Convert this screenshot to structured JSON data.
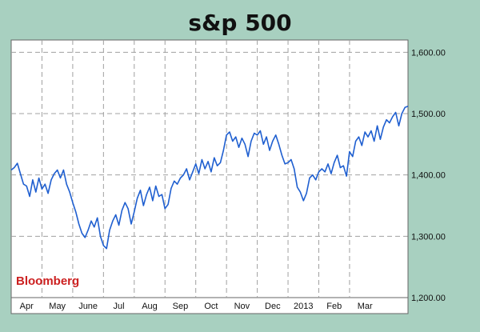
{
  "colors": {
    "background": "#a8d0c0",
    "plot_background": "#ffffff",
    "line": "#1f5fd0",
    "grid": "#a0a0a0",
    "source_text": "#cc2020"
  },
  "chart_data": {
    "type": "line",
    "title": "s&p 500",
    "xlabel": "",
    "ylabel": "",
    "source_label": "Bloomberg",
    "ylim": [
      1200,
      1620
    ],
    "yticks": [
      1200,
      1300,
      1400,
      1500,
      1600
    ],
    "ytick_labels": [
      "1,200.00",
      "1,300.00",
      "1,400.00",
      "1,500.00",
      "1,600.00"
    ],
    "x_tick_labels": [
      "Apr",
      "May",
      "June",
      "Jul",
      "Aug",
      "Sep",
      "Oct",
      "Nov",
      "Dec",
      "2013",
      "Feb",
      "Mar"
    ],
    "grid": true,
    "legend": "none",
    "y_axis_position": "right",
    "x_range": [
      0,
      12.9
    ],
    "series": [
      {
        "x": [
          0.0,
          0.1,
          0.2,
          0.3,
          0.4,
          0.5,
          0.6,
          0.7,
          0.8,
          0.9,
          1.0,
          1.1,
          1.2,
          1.3,
          1.4,
          1.5,
          1.6,
          1.7,
          1.8,
          1.9,
          2.0,
          2.1,
          2.2,
          2.3,
          2.4,
          2.5,
          2.6,
          2.7,
          2.8,
          2.9,
          3.0,
          3.1,
          3.2,
          3.3,
          3.4,
          3.5,
          3.6,
          3.7,
          3.8,
          3.9,
          4.0,
          4.1,
          4.2,
          4.3,
          4.4,
          4.5,
          4.6,
          4.7,
          4.8,
          4.9,
          5.0,
          5.1,
          5.2,
          5.3,
          5.4,
          5.5,
          5.6,
          5.7,
          5.8,
          5.9,
          6.0,
          6.1,
          6.2,
          6.3,
          6.4,
          6.5,
          6.6,
          6.7,
          6.8,
          6.9,
          7.0,
          7.1,
          7.2,
          7.3,
          7.4,
          7.5,
          7.6,
          7.7,
          7.8,
          7.9,
          8.0,
          8.1,
          8.2,
          8.3,
          8.4,
          8.5,
          8.6,
          8.7,
          8.8,
          8.9,
          9.0,
          9.1,
          9.2,
          9.3,
          9.4,
          9.5,
          9.6,
          9.7,
          9.8,
          9.9,
          10.0,
          10.1,
          10.2,
          10.3,
          10.4,
          10.5,
          10.6,
          10.7,
          10.8,
          10.9,
          11.0,
          11.1,
          11.2,
          11.3,
          11.4,
          11.5,
          11.6,
          11.7,
          11.8,
          11.9,
          12.0,
          12.1,
          12.2,
          12.3,
          12.4,
          12.5,
          12.6,
          12.7,
          12.8,
          12.9
        ],
        "values": [
          1408,
          1412,
          1419,
          1402,
          1385,
          1382,
          1365,
          1392,
          1372,
          1395,
          1377,
          1385,
          1370,
          1392,
          1402,
          1408,
          1395,
          1408,
          1385,
          1372,
          1355,
          1340,
          1320,
          1305,
          1298,
          1310,
          1325,
          1315,
          1330,
          1300,
          1285,
          1280,
          1310,
          1325,
          1335,
          1318,
          1342,
          1355,
          1345,
          1320,
          1340,
          1362,
          1375,
          1350,
          1368,
          1380,
          1358,
          1382,
          1365,
          1368,
          1345,
          1352,
          1378,
          1390,
          1385,
          1395,
          1400,
          1410,
          1392,
          1405,
          1418,
          1402,
          1425,
          1410,
          1422,
          1405,
          1428,
          1415,
          1420,
          1440,
          1465,
          1470,
          1455,
          1462,
          1445,
          1460,
          1450,
          1430,
          1455,
          1468,
          1465,
          1472,
          1450,
          1462,
          1440,
          1455,
          1465,
          1450,
          1432,
          1418,
          1420,
          1425,
          1410,
          1380,
          1372,
          1358,
          1370,
          1395,
          1400,
          1392,
          1405,
          1410,
          1405,
          1418,
          1402,
          1420,
          1432,
          1412,
          1415,
          1398,
          1438,
          1430,
          1455,
          1462,
          1448,
          1470,
          1462,
          1472,
          1455,
          1480,
          1458,
          1478,
          1490,
          1485,
          1495,
          1502,
          1480,
          1500,
          1510,
          1512
        ]
      }
    ]
  }
}
